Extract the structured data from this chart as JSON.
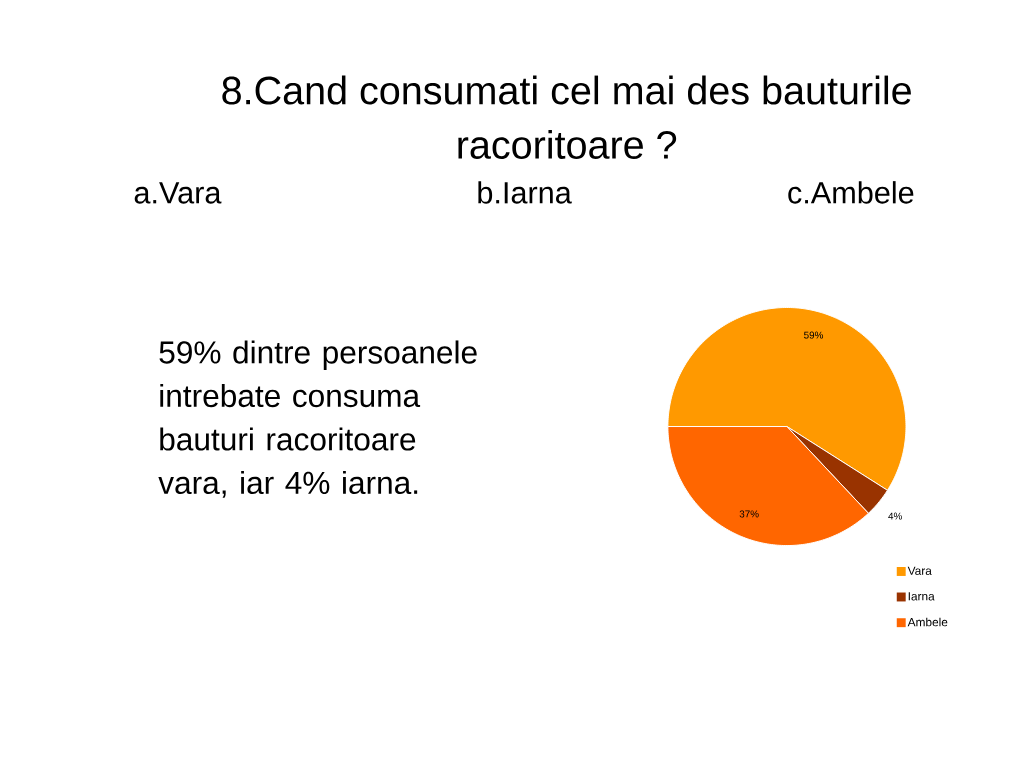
{
  "chart_data": {
    "type": "pie",
    "title": "8.Cand consumati cel mai des bauturile racoritoare ?",
    "categories": [
      "Vara",
      "Iarna",
      "Ambele"
    ],
    "values": [
      59,
      4,
      37
    ],
    "colors": [
      "#ff9900",
      "#993300",
      "#ff6600"
    ],
    "value_labels": [
      "59%",
      "4%",
      "37%"
    ],
    "legend": "bottom right",
    "annotations": [
      "a.Vara",
      "b.Iarna",
      "c.Ambele",
      "59% dintre persoanele intrebate consuma bauturi racoritoare vara, iar 4% iarna."
    ]
  }
}
